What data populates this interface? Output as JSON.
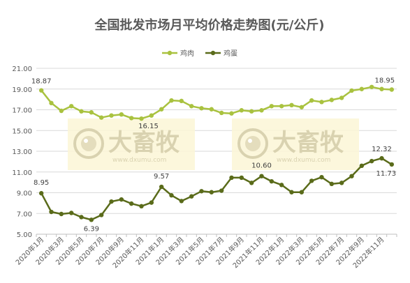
{
  "chart_data": {
    "type": "line",
    "title": "全国批发市场月平均价格走势图(元/公斤)",
    "ylim": [
      5.0,
      21.0
    ],
    "yticks": [
      "5.00",
      "7.00",
      "9.00",
      "11.00",
      "13.00",
      "15.00",
      "17.00",
      "19.00",
      "21.00"
    ],
    "x": [
      "2020年1月",
      "2020年2月",
      "2020年3月",
      "2020年4月",
      "2020年5月",
      "2020年6月",
      "2020年7月",
      "2020年8月",
      "2020年9月",
      "2020年10月",
      "2020年11月",
      "2020年12月",
      "2021年1月",
      "2021年2月",
      "2021年3月",
      "2021年4月",
      "2021年5月",
      "2021年6月",
      "2021年7月",
      "2021年8月",
      "2021年9月",
      "2021年10月",
      "2021年11月",
      "2021年12月",
      "2022年1月",
      "2022年2月",
      "2022年3月",
      "2022年4月",
      "2022年5月",
      "2022年6月",
      "2022年7月",
      "2022年8月",
      "2022年9月",
      "2022年10月",
      "2022年11月",
      "2022年12月"
    ],
    "xtick_labels": [
      "2020年1月",
      "2020年3月",
      "2020年5月",
      "2020年7月",
      "2020年9月",
      "2020年11月",
      "2021年1月",
      "2021年3月",
      "2021年5月",
      "2021年7月",
      "2021年9月",
      "2021年11月",
      "2022年1月",
      "2022年3月",
      "2022年5月",
      "2022年7月",
      "2022年9月",
      "2022年11月"
    ],
    "grid": true,
    "legend_position": "top-center",
    "series": [
      {
        "name": "鸡肉",
        "color": "#a9c23f",
        "values": [
          18.87,
          17.65,
          16.9,
          17.35,
          16.85,
          16.75,
          16.25,
          16.45,
          16.55,
          16.2,
          16.15,
          16.45,
          17.05,
          17.9,
          17.85,
          17.35,
          17.15,
          17.05,
          16.7,
          16.65,
          16.95,
          16.85,
          16.95,
          17.35,
          17.35,
          17.45,
          17.25,
          17.9,
          17.75,
          17.95,
          18.15,
          18.85,
          19.0,
          19.2,
          19.0,
          18.95
        ],
        "data_labels": [
          {
            "index": 0,
            "text": "18.87"
          },
          {
            "index": 10,
            "text": "16.15"
          },
          {
            "index": 35,
            "text": "18.95"
          }
        ]
      },
      {
        "name": "鸡蛋",
        "color": "#5a6b1a",
        "values": [
          8.95,
          7.15,
          6.95,
          7.05,
          6.65,
          6.39,
          6.85,
          8.15,
          8.35,
          7.95,
          7.7,
          8.05,
          9.57,
          8.75,
          8.2,
          8.65,
          9.15,
          9.05,
          9.2,
          10.45,
          10.45,
          9.95,
          10.6,
          10.1,
          9.75,
          9.05,
          9.05,
          10.15,
          10.5,
          9.85,
          9.95,
          10.6,
          11.6,
          12.05,
          12.32,
          11.73
        ],
        "data_labels": [
          {
            "index": 0,
            "text": "8.95"
          },
          {
            "index": 5,
            "text": "6.39"
          },
          {
            "index": 12,
            "text": "9.57"
          },
          {
            "index": 22,
            "text": "10.60"
          },
          {
            "index": 34,
            "text": "12.32"
          },
          {
            "index": 35,
            "text": "11.73"
          }
        ]
      }
    ],
    "watermark": {
      "text": "大畜牧",
      "url": "www.dxumu.com"
    }
  }
}
